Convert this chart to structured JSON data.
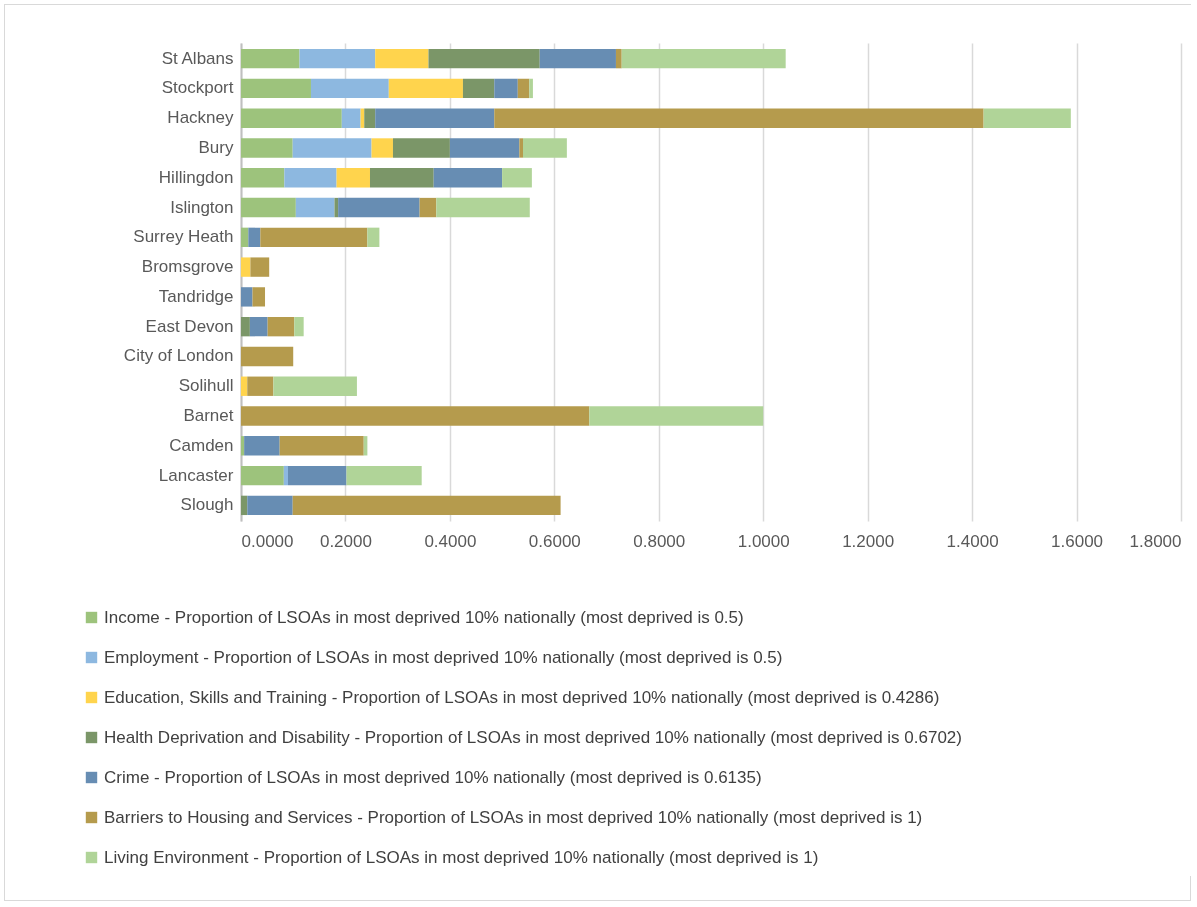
{
  "chart_data": {
    "type": "bar",
    "orientation": "horizontal",
    "stacked": true,
    "grid": "x",
    "legend": "bottom",
    "categories": [
      "St Albans",
      "Stockport",
      "Hackney",
      "Bury",
      "Hillingdon",
      "Islington",
      "Surrey Heath",
      "Bromsgrove",
      "Tandridge",
      "East Devon",
      "City of London",
      "Solihull",
      "Barnet",
      "Camden",
      "Lancaster",
      "Slough"
    ],
    "xlim": [
      0,
      1.8
    ],
    "xticks": [
      {
        "value": 0,
        "label": "0.0000"
      },
      {
        "value": 0.2,
        "label": "0.2000"
      },
      {
        "value": 0.4,
        "label": "0.4000"
      },
      {
        "value": 0.6,
        "label": "0.6000"
      },
      {
        "value": 0.8,
        "label": "0.8000"
      },
      {
        "value": 1,
        "label": "1.0000"
      },
      {
        "value": 1.2,
        "label": "1.2000"
      },
      {
        "value": 1.4,
        "label": "1.4000"
      },
      {
        "value": 1.6,
        "label": "1.6000"
      },
      {
        "value": 1.8,
        "label": "1.8000"
      }
    ],
    "series": [
      {
        "name": "Income - Proportion of LSOAs in most deprived 10% nationally (most deprived is 0.5)",
        "color": "#9dc37c",
        "values": [
          0.112,
          0.134,
          0.193,
          0.099,
          0.083,
          0.105,
          0.014,
          null,
          null,
          null,
          null,
          null,
          null,
          0.006,
          0.082,
          null
        ]
      },
      {
        "name": "Employment - Proportion of LSOAs in most deprived 10% nationally (most deprived is 0.5)",
        "color": "#8db8e0",
        "values": [
          0.145,
          0.149,
          0.036,
          0.151,
          0.1,
          0.074,
          null,
          null,
          null,
          null,
          null,
          null,
          null,
          null,
          0.008,
          null
        ]
      },
      {
        "name": "Education, Skills and Training - Proportion of LSOAs in most deprived 10% nationally (most deprived is 0.4286)",
        "color": "#ffd44d",
        "values": [
          0.102,
          0.142,
          0.007,
          0.041,
          0.064,
          null,
          null,
          0.018,
          null,
          null,
          null,
          0.012,
          null,
          null,
          null,
          null
        ]
      },
      {
        "name": "Health Deprivation and Disability - Proportion of LSOAs in most deprived 10% nationally (most deprived is 0.6702)",
        "color": "#7b9668",
        "values": [
          0.213,
          0.06,
          0.021,
          0.109,
          0.122,
          0.007,
          null,
          null,
          null,
          0.017,
          null,
          null,
          null,
          null,
          null,
          0.012
        ]
      },
      {
        "name": "Crime - Proportion of LSOAs in most deprived 10% nationally (most deprived is 0.6135)",
        "color": "#678db3",
        "values": [
          0.146,
          0.045,
          0.228,
          0.133,
          0.131,
          0.156,
          0.023,
          null,
          0.022,
          0.034,
          null,
          null,
          null,
          0.068,
          0.112,
          0.087
        ]
      },
      {
        "name": "Barriers to Housing and Services - Proportion of LSOAs in most deprived 10% nationally (most deprived is 1)",
        "color": "#b59b4d",
        "values": [
          0.011,
          0.022,
          0.937,
          0.007,
          null,
          0.032,
          0.205,
          0.036,
          0.024,
          0.051,
          0.1,
          0.05,
          0.667,
          0.161,
          null,
          0.513
        ]
      },
      {
        "name": "Living Environment - Proportion of LSOAs in most deprived 10% nationally (most deprived is 1)",
        "color": "#b0d498",
        "values": [
          0.314,
          0.007,
          0.167,
          0.084,
          0.057,
          0.179,
          0.023,
          null,
          null,
          0.018,
          null,
          0.16,
          0.333,
          0.007,
          0.144,
          null
        ]
      }
    ]
  }
}
